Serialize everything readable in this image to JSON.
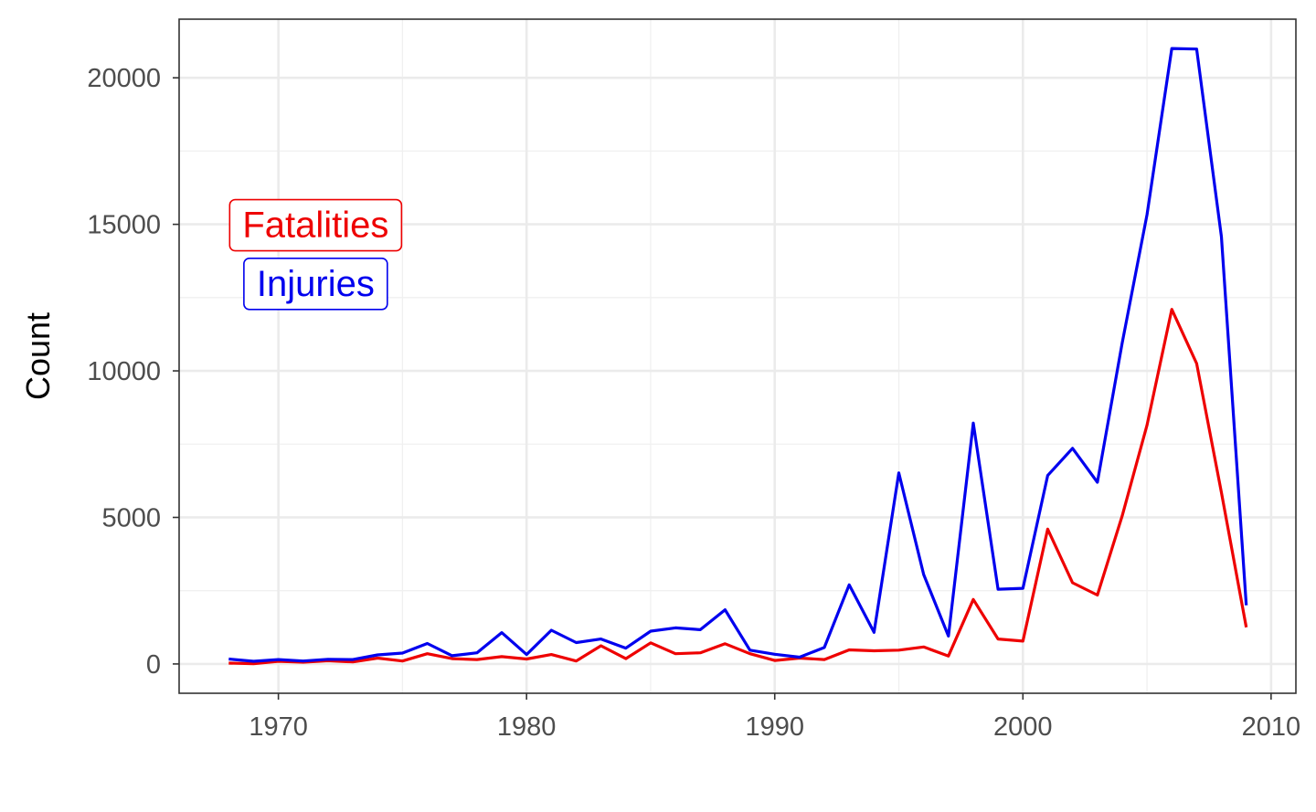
{
  "chart_data": {
    "type": "line",
    "title": "",
    "xlabel": "",
    "ylabel": "Count",
    "xlim": [
      1966,
      2011
    ],
    "ylim": [
      -1000,
      22000
    ],
    "x_ticks": [
      1970,
      1980,
      1990,
      2000,
      2010
    ],
    "y_ticks": [
      0,
      5000,
      10000,
      15000,
      20000
    ],
    "grid": true,
    "x": [
      1968,
      1969,
      1970,
      1971,
      1972,
      1973,
      1974,
      1975,
      1976,
      1977,
      1978,
      1979,
      1980,
      1981,
      1982,
      1983,
      1984,
      1985,
      1986,
      1987,
      1988,
      1989,
      1990,
      1991,
      1992,
      1993,
      1994,
      1995,
      1996,
      1997,
      1998,
      1999,
      2000,
      2001,
      2002,
      2003,
      2004,
      2005,
      2006,
      2007,
      2008,
      2009
    ],
    "series": [
      {
        "name": "Fatalities",
        "color": "#ee0000",
        "values": [
          30,
          10,
          90,
          60,
          110,
          70,
          200,
          100,
          350,
          180,
          150,
          250,
          170,
          320,
          100,
          620,
          180,
          720,
          350,
          380,
          690,
          350,
          120,
          200,
          150,
          480,
          450,
          470,
          580,
          270,
          2200,
          850,
          780,
          4600,
          2770,
          2350,
          5050,
          8150,
          12100,
          10250,
          5850,
          1250
        ]
      },
      {
        "name": "Injuries",
        "color": "#0000ee",
        "values": [
          170,
          90,
          150,
          100,
          160,
          150,
          310,
          370,
          700,
          280,
          380,
          1070,
          320,
          1150,
          730,
          850,
          540,
          1120,
          1230,
          1170,
          1850,
          470,
          330,
          230,
          560,
          2700,
          1080,
          6520,
          3050,
          950,
          8220,
          2550,
          2580,
          6430,
          7360,
          6200,
          10950,
          15330,
          21000,
          20980,
          14580,
          2000
        ]
      }
    ],
    "annotations": [
      {
        "text": "Fatalities",
        "color": "#ee0000",
        "x": 1971.5,
        "y": 15000
      },
      {
        "text": "Injuries",
        "color": "#0000ee",
        "x": 1971.5,
        "y": 13000
      }
    ]
  }
}
